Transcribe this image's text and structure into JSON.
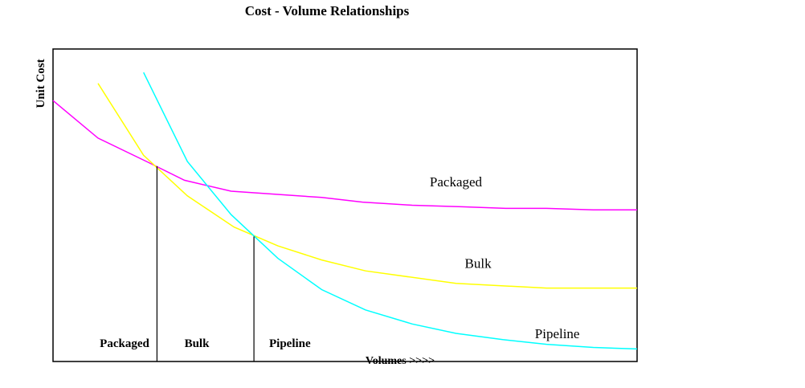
{
  "chart_data": {
    "type": "line",
    "title": "Cost - Volume Relationships",
    "xlabel": "Volumes >>>>",
    "ylabel": "Unit Cost",
    "xlim": [
      0,
      100
    ],
    "ylim": [
      0,
      100
    ],
    "grid": false,
    "legend": "none",
    "series": [
      {
        "name": "Packaged",
        "color": "#ff00ff",
        "x": [
          0,
          7.7,
          16,
          22.5,
          30.5,
          46,
          53,
          61.5,
          70,
          77.5,
          84.5,
          92.5,
          100
        ],
        "y": [
          83.5,
          71.5,
          64,
          58,
          54.5,
          52.5,
          51,
          50,
          49.5,
          49,
          49,
          48.5,
          48.5
        ]
      },
      {
        "name": "Bulk",
        "color": "#ffff00",
        "x": [
          7.7,
          15.5,
          23,
          31,
          38.5,
          46,
          53.5,
          69,
          84.5,
          100
        ],
        "y": [
          89,
          66,
          53,
          43,
          37,
          32.5,
          29,
          25,
          23.5,
          23.5
        ]
      },
      {
        "name": "Pipeline",
        "color": "#00ffff",
        "x": [
          15.5,
          23,
          30.5,
          38.5,
          46,
          53.5,
          61.5,
          69,
          77,
          84.5,
          92.5,
          100
        ],
        "y": [
          92.5,
          64,
          47,
          33,
          23,
          16.5,
          12,
          9,
          7,
          5.5,
          4.5,
          4
        ]
      }
    ],
    "vlines": [
      {
        "x": 17.8,
        "y": 62.5
      },
      {
        "x": 34.4,
        "y": 40
      }
    ],
    "series_labels": [
      {
        "text": "Packaged",
        "x": 64.5,
        "y": 56
      },
      {
        "text": "Bulk",
        "x": 70.5,
        "y": 30
      },
      {
        "text": "Pipeline",
        "x": 82.5,
        "y": 7.5
      }
    ],
    "region_labels": [
      {
        "text": "Packaged",
        "x": 8
      },
      {
        "text": "Bulk",
        "x": 22.5
      },
      {
        "text": "Pipeline",
        "x": 37
      }
    ]
  }
}
